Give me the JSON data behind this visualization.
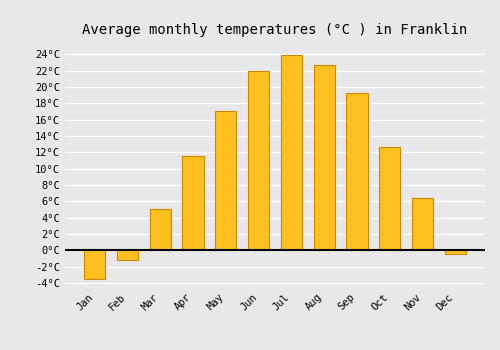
{
  "title": "Average monthly temperatures (°C ) in Franklin",
  "months": [
    "Jan",
    "Feb",
    "Mar",
    "Apr",
    "May",
    "Jun",
    "Jul",
    "Aug",
    "Sep",
    "Oct",
    "Nov",
    "Dec"
  ],
  "values": [
    -3.5,
    -1.2,
    5.1,
    11.5,
    17.0,
    22.0,
    23.9,
    22.7,
    19.2,
    12.7,
    6.4,
    -0.5
  ],
  "bar_color": "#FFC020",
  "bar_edge_color": "#CC8800",
  "ylim": [
    -4.5,
    25.5
  ],
  "yticks": [
    -4,
    -2,
    0,
    2,
    4,
    6,
    8,
    10,
    12,
    14,
    16,
    18,
    20,
    22,
    24
  ],
  "ytick_labels": [
    "-4°C",
    "-2°C",
    "0°C",
    "2°C",
    "4°C",
    "6°C",
    "8°C",
    "10°C",
    "12°C",
    "14°C",
    "16°C",
    "18°C",
    "20°C",
    "22°C",
    "24°C"
  ],
  "figure_bg": "#e8e8e8",
  "axes_bg": "#e8e8e8",
  "grid_color": "#ffffff",
  "title_fontsize": 10,
  "tick_fontsize": 7.5,
  "font_family": "monospace",
  "bar_width": 0.65,
  "figsize": [
    5.0,
    3.5
  ],
  "dpi": 100
}
